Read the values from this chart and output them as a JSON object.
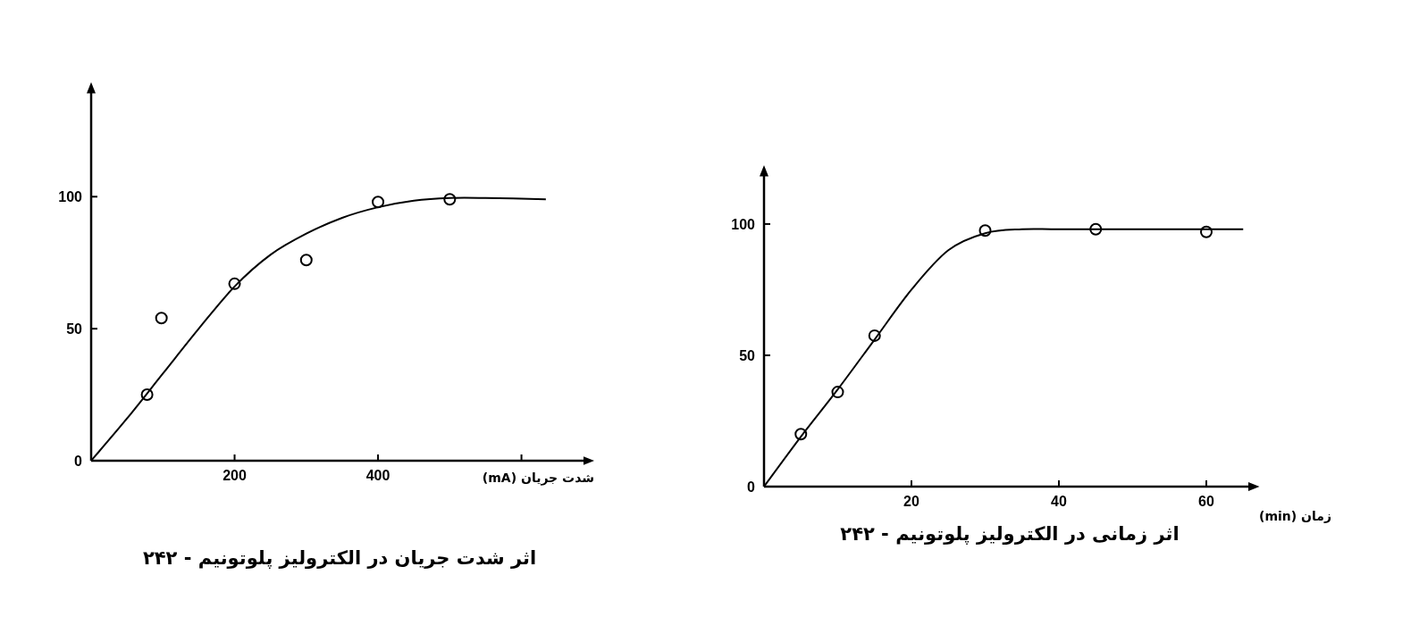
{
  "chart_data": [
    {
      "type": "scatter",
      "title": "اثر شدت جریان در الکترولیز پلوتونیم - ۲۴۲",
      "xlabel": "شدت جریان (mA)",
      "xlim": [
        0,
        689
      ],
      "ylim": [
        0,
        140
      ],
      "xticks": [
        200,
        400,
        {
          "value": 600,
          "label": null
        }
      ],
      "yticks": [
        0,
        50,
        100
      ],
      "series": [
        {
          "marker": "circle",
          "color": "#000000",
          "x": [
            78,
            98,
            200,
            300,
            400,
            500
          ],
          "values": [
            25,
            54,
            67,
            76,
            98,
            99
          ]
        },
        {
          "type": "line",
          "color": "#000000",
          "line_style": "solid",
          "x": [
            0,
            50,
            100,
            150,
            200,
            250,
            300,
            350,
            400,
            450,
            500,
            550,
            634
          ],
          "values": [
            0,
            16,
            33,
            50,
            66,
            78,
            86,
            92,
            96,
            98.5,
            99.5,
            99.5,
            99
          ]
        }
      ]
    },
    {
      "type": "scatter",
      "title": "اثر زمانی در الکترولیز پلوتونیم - ۲۴۲",
      "xlabel": "زمان (min)",
      "xlim": [
        0,
        66
      ],
      "ylim": [
        0,
        119
      ],
      "xticks": [
        20,
        40,
        60
      ],
      "yticks": [
        0,
        50,
        100
      ],
      "series": [
        {
          "marker": "circle",
          "color": "#000000",
          "x": [
            5,
            10,
            15,
            30,
            45,
            60
          ],
          "values": [
            20,
            36,
            57.5,
            97.5,
            98,
            97
          ]
        },
        {
          "type": "line",
          "color": "#000000",
          "line_style": "solid",
          "x": [
            0,
            5,
            10,
            15,
            20,
            25,
            30,
            35,
            40,
            50,
            60,
            65
          ],
          "values": [
            0,
            19,
            37,
            56,
            75,
            90,
            96.5,
            98,
            98,
            98,
            98,
            98
          ]
        }
      ]
    }
  ]
}
